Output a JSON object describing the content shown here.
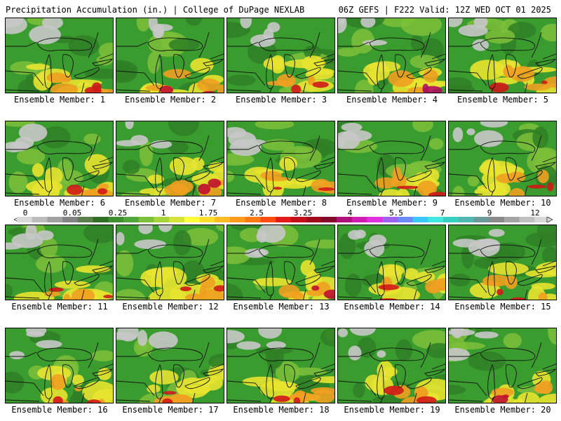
{
  "header": {
    "left": "Precipitation Accumulation (in.) | College of DuPage NEXLAB",
    "right": "06Z GEFS | F222 Valid: 12Z WED OCT 01 2025"
  },
  "colorbar": {
    "labels": [
      "0",
      "0.05",
      "0.25",
      "1",
      "1.75",
      "2.5",
      "3.25",
      "4",
      "5.5",
      "7",
      "9",
      "12"
    ],
    "colors": [
      "#d9d9d9",
      "#bcbcbc",
      "#a0a0a0",
      "#848484",
      "#5a7f4a",
      "#2f6f24",
      "#3d8f30",
      "#50a63a",
      "#7cbf3a",
      "#a6d23a",
      "#d6e43a",
      "#ffff3a",
      "#ffdd2a",
      "#ffbb22",
      "#ff9a1a",
      "#ff7a14",
      "#ff4a10",
      "#e51a1a",
      "#c40f1a",
      "#a00a1a",
      "#84082a",
      "#b0107a",
      "#d21ab4",
      "#e030e0",
      "#a060f0",
      "#6b8af8",
      "#3ac8f8",
      "#40e8e0",
      "#38d0c0",
      "#50b8b0",
      "#6a9a9a",
      "#8a8a8a",
      "#a4a4a4",
      "#c0c0c0",
      "#d8d8d8"
    ]
  },
  "members": [
    {
      "label": "Ensemble Member: 1",
      "colors": {
        "gray": "#c8c8c8",
        "yellow": "#e8e430",
        "orange": "#f0a020",
        "red": "#d01818"
      }
    },
    {
      "label": "Ensemble Member: 2",
      "colors": {
        "gray": "#c8c8c8",
        "yellow": "#e8e430",
        "orange": "#f0a020",
        "red": "#c01030"
      }
    },
    {
      "label": "Ensemble Member: 3",
      "colors": {
        "gray": "#c8c8c8",
        "yellow": "#e8e430",
        "orange": "#f0a020",
        "red": "#d01818"
      }
    },
    {
      "label": "Ensemble Member: 4",
      "colors": {
        "gray": "#c8c8c8",
        "yellow": "#e8e430",
        "orange": "#f0a020",
        "red": "#b01060"
      }
    },
    {
      "label": "Ensemble Member: 5",
      "colors": {
        "gray": "#c8c8c8",
        "yellow": "#e8e430",
        "orange": "#f0a020",
        "red": "#d01818"
      }
    },
    {
      "label": "Ensemble Member: 6",
      "colors": {
        "gray": "#c8c8c8",
        "yellow": "#e8e430",
        "orange": "#f0a020",
        "red": "#d01818"
      }
    },
    {
      "label": "Ensemble Member: 7",
      "colors": {
        "gray": "#c8c8c8",
        "yellow": "#e8e430",
        "orange": "#f0a020",
        "red": "#c01030"
      }
    },
    {
      "label": "Ensemble Member: 8",
      "colors": {
        "gray": "#c8c8c8",
        "yellow": "#e8e430",
        "orange": "#f0a020",
        "red": "#d01818"
      }
    },
    {
      "label": "Ensemble Member: 9",
      "colors": {
        "gray": "#c8c8c8",
        "yellow": "#e8e430",
        "orange": "#f0a020",
        "red": "#d01818"
      }
    },
    {
      "label": "Ensemble Member: 10",
      "colors": {
        "gray": "#c8c8c8",
        "yellow": "#e8e430",
        "orange": "#f0a020",
        "red": "#d01818"
      }
    },
    {
      "label": "Ensemble Member: 11",
      "colors": {
        "gray": "#c8c8c8",
        "yellow": "#e8e430",
        "orange": "#f0a020",
        "red": "#d01818"
      }
    },
    {
      "label": "Ensemble Member: 12",
      "colors": {
        "gray": "#c8c8c8",
        "yellow": "#e8e430",
        "orange": "#f0a020",
        "red": "#d01818"
      }
    },
    {
      "label": "Ensemble Member: 13",
      "colors": {
        "gray": "#c8c8c8",
        "yellow": "#e8e430",
        "orange": "#f0a020",
        "red": "#c01030"
      }
    },
    {
      "label": "Ensemble Member: 14",
      "colors": {
        "gray": "#c8c8c8",
        "yellow": "#e8e430",
        "orange": "#f0a020",
        "red": "#d01818"
      }
    },
    {
      "label": "Ensemble Member: 15",
      "colors": {
        "gray": "#c8c8c8",
        "yellow": "#e8e430",
        "orange": "#f0a020",
        "red": "#d01818"
      }
    },
    {
      "label": "Ensemble Member: 16",
      "colors": {
        "gray": "#c8c8c8",
        "yellow": "#e8e430",
        "orange": "#f0a020",
        "red": "#d01818"
      }
    },
    {
      "label": "Ensemble Member: 17",
      "colors": {
        "gray": "#c8c8c8",
        "yellow": "#e8e430",
        "orange": "#f0a020",
        "red": "#d01818"
      }
    },
    {
      "label": "Ensemble Member: 18",
      "colors": {
        "gray": "#c8c8c8",
        "yellow": "#e8e430",
        "orange": "#f0a020",
        "red": "#d01818"
      }
    },
    {
      "label": "Ensemble Member: 19",
      "colors": {
        "gray": "#c8c8c8",
        "yellow": "#e8e430",
        "orange": "#f0a020",
        "red": "#d01818"
      }
    },
    {
      "label": "Ensemble Member: 20",
      "colors": {
        "gray": "#c8c8c8",
        "yellow": "#e8e430",
        "orange": "#f0a020",
        "red": "#c01030"
      }
    }
  ]
}
